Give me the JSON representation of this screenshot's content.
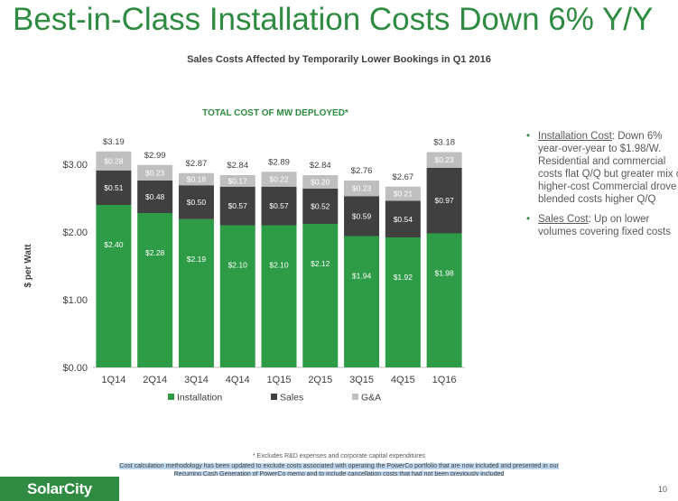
{
  "slide": {
    "title": "Best-in-Class Installation Costs Down 6% Y/Y",
    "subtitle": "Sales Costs Affected by Temporarily Lower Bookings in Q1 2016",
    "chart_title": "TOTAL COST OF MW DEPLOYED*",
    "bullets": [
      {
        "head": "Installation Cost",
        "lines": [
          ": Down 6%",
          "year-over-year to $1.98/W.",
          "Residential and commercial",
          "costs flat Q/Q but greater mix of",
          "higher-cost Commercial drove",
          "blended costs higher Q/Q"
        ]
      },
      {
        "head": "Sales Cost",
        "lines": [
          ": Up on lower",
          "volumes covering fixed costs"
        ]
      }
    ],
    "footnote": "* Excludes R&D expenses and corporate capital expenditures",
    "note_line1": "Cost calculation methodology has been updated to exclude costs associated with operating the PowerCo portfolio that are now included and presented in our",
    "note_line2": "Recurring Cash Generation of PowerCo memo and to include cancellation costs that had not been previously included",
    "logo_text": "SolarCity",
    "page_number": "10"
  },
  "colors": {
    "installation": "#2e9c47",
    "sales": "#404040",
    "ga": "#bfbfbf",
    "title_green": "#2e8b41"
  },
  "chart_data": {
    "type": "bar",
    "stacked": true,
    "categories": [
      "1Q14",
      "2Q14",
      "3Q14",
      "4Q14",
      "1Q15",
      "2Q15",
      "3Q15",
      "4Q15",
      "1Q16"
    ],
    "series": [
      {
        "name": "Installation",
        "values": [
          2.4,
          2.28,
          2.19,
          2.1,
          2.1,
          2.12,
          1.94,
          1.92,
          1.98
        ]
      },
      {
        "name": "Sales",
        "values": [
          0.51,
          0.48,
          0.5,
          0.57,
          0.57,
          0.52,
          0.59,
          0.54,
          0.97
        ]
      },
      {
        "name": "G&A",
        "values": [
          0.28,
          0.23,
          0.18,
          0.17,
          0.22,
          0.2,
          0.23,
          0.21,
          0.23
        ]
      }
    ],
    "totals": [
      3.19,
      2.99,
      2.87,
      2.84,
      2.89,
      2.84,
      2.76,
      2.67,
      3.18
    ],
    "ylabel": "$ per Watt",
    "ylim": [
      0,
      3.5
    ],
    "yticks": [
      0,
      1,
      2,
      3
    ],
    "ytick_labels": [
      "$0.00",
      "$1.00",
      "$2.00",
      "$3.00"
    ],
    "grid": false,
    "legend": "bottom"
  }
}
